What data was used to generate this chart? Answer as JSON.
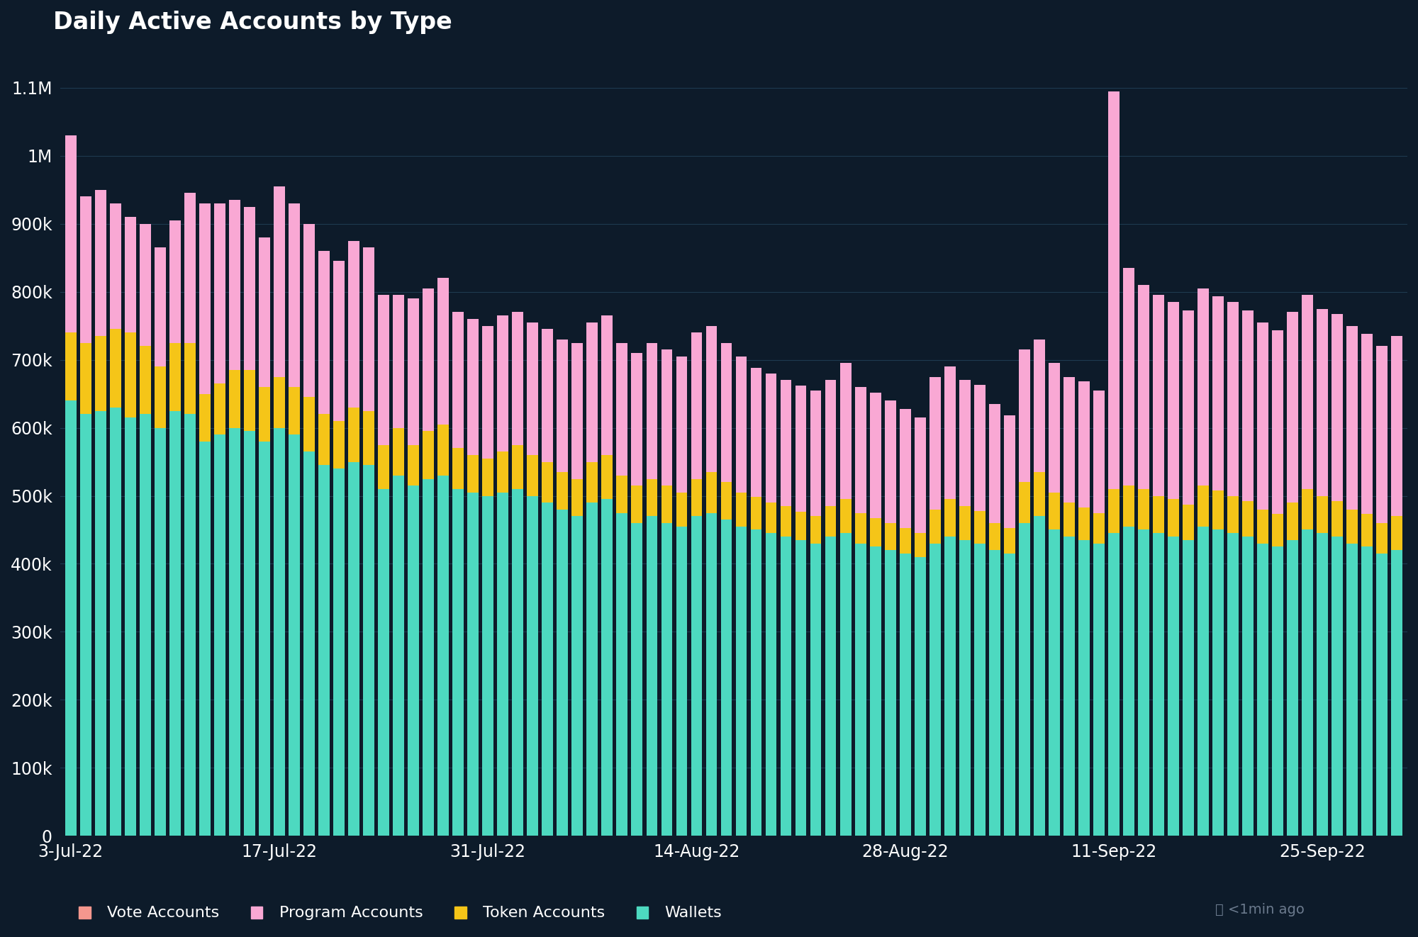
{
  "title": "Daily Active Accounts by Type",
  "background_color": "#0d1b2a",
  "text_color": "#ffffff",
  "grid_color": "#1e3a4f",
  "bar_width": 0.75,
  "ylim": [
    0,
    1150000
  ],
  "yticks": [
    0,
    100000,
    200000,
    300000,
    400000,
    500000,
    600000,
    700000,
    800000,
    900000,
    1000000,
    1100000
  ],
  "ytick_labels": [
    "0",
    "100k",
    "200k",
    "300k",
    "400k",
    "500k",
    "600k",
    "700k",
    "800k",
    "900k",
    "1M",
    "1.1M"
  ],
  "xtick_labels": [
    "3-Jul-22",
    "17-Jul-22",
    "31-Jul-22",
    "14-Aug-22",
    "28-Aug-22",
    "11-Sep-22",
    "25-Sep-22"
  ],
  "xtick_positions": [
    0,
    14,
    28,
    42,
    56,
    70,
    84
  ],
  "legend_labels": [
    "Vote Accounts",
    "Program Accounts",
    "Token Accounts",
    "Wallets"
  ],
  "colors": {
    "vote": "#f4978e",
    "program": "#f9a8d4",
    "token": "#f5c518",
    "wallets": "#4dd9c0"
  },
  "footer_text": "⌛ <1min ago",
  "wallets": [
    640000,
    620000,
    625000,
    630000,
    615000,
    620000,
    600000,
    625000,
    620000,
    580000,
    590000,
    600000,
    595000,
    580000,
    600000,
    590000,
    565000,
    545000,
    540000,
    550000,
    545000,
    510000,
    530000,
    515000,
    525000,
    530000,
    510000,
    505000,
    500000,
    505000,
    510000,
    500000,
    490000,
    480000,
    470000,
    490000,
    495000,
    475000,
    460000,
    470000,
    460000,
    455000,
    470000,
    475000,
    465000,
    455000,
    450000,
    445000,
    440000,
    435000,
    430000,
    440000,
    445000,
    430000,
    425000,
    420000,
    415000,
    410000,
    430000,
    440000,
    435000,
    430000,
    420000,
    415000,
    460000,
    470000,
    450000,
    440000,
    435000,
    430000,
    445000,
    455000,
    450000,
    445000,
    440000,
    435000,
    455000,
    450000,
    445000,
    440000,
    430000,
    425000,
    435000,
    450000,
    445000,
    440000,
    430000,
    425000,
    415000,
    420000
  ],
  "token": [
    100000,
    105000,
    110000,
    115000,
    125000,
    100000,
    90000,
    100000,
    105000,
    70000,
    75000,
    85000,
    90000,
    80000,
    75000,
    70000,
    80000,
    75000,
    70000,
    80000,
    80000,
    65000,
    70000,
    60000,
    70000,
    75000,
    60000,
    55000,
    55000,
    60000,
    65000,
    60000,
    60000,
    55000,
    55000,
    60000,
    65000,
    55000,
    55000,
    55000,
    55000,
    50000,
    55000,
    60000,
    55000,
    50000,
    48000,
    45000,
    45000,
    42000,
    40000,
    45000,
    50000,
    45000,
    42000,
    40000,
    38000,
    35000,
    50000,
    55000,
    50000,
    48000,
    40000,
    38000,
    60000,
    65000,
    55000,
    50000,
    48000,
    45000,
    65000,
    60000,
    60000,
    55000,
    55000,
    52000,
    60000,
    58000,
    55000,
    52000,
    50000,
    48000,
    55000,
    60000,
    55000,
    52000,
    50000,
    48000,
    45000,
    50000
  ],
  "program": [
    290000,
    215000,
    215000,
    185000,
    170000,
    180000,
    175000,
    180000,
    220000,
    280000,
    265000,
    250000,
    240000,
    220000,
    280000,
    270000,
    255000,
    240000,
    235000,
    245000,
    240000,
    220000,
    195000,
    215000,
    210000,
    215000,
    200000,
    200000,
    195000,
    200000,
    195000,
    195000,
    195000,
    195000,
    200000,
    205000,
    205000,
    195000,
    195000,
    200000,
    200000,
    200000,
    215000,
    215000,
    205000,
    200000,
    190000,
    190000,
    185000,
    185000,
    185000,
    185000,
    200000,
    185000,
    185000,
    180000,
    175000,
    170000,
    195000,
    195000,
    185000,
    185000,
    175000,
    165000,
    195000,
    195000,
    190000,
    185000,
    185000,
    180000,
    585000,
    320000,
    300000,
    295000,
    290000,
    285000,
    290000,
    285000,
    285000,
    280000,
    275000,
    270000,
    280000,
    285000,
    275000,
    275000,
    270000,
    265000,
    260000,
    265000
  ],
  "vote": [
    0,
    0,
    0,
    0,
    0,
    0,
    0,
    0,
    0,
    0,
    0,
    0,
    0,
    0,
    0,
    0,
    0,
    0,
    0,
    0,
    0,
    0,
    0,
    0,
    0,
    0,
    0,
    0,
    0,
    0,
    0,
    0,
    0,
    0,
    0,
    0,
    0,
    0,
    0,
    0,
    0,
    0,
    0,
    0,
    0,
    0,
    0,
    0,
    0,
    0,
    0,
    0,
    0,
    0,
    0,
    0,
    0,
    0,
    0,
    0,
    0,
    0,
    0,
    0,
    0,
    0,
    0,
    0,
    0,
    0,
    0,
    0,
    0,
    0,
    0,
    0,
    0,
    0,
    0,
    0,
    0,
    0,
    0,
    0,
    0,
    0,
    0,
    0,
    0,
    0
  ]
}
